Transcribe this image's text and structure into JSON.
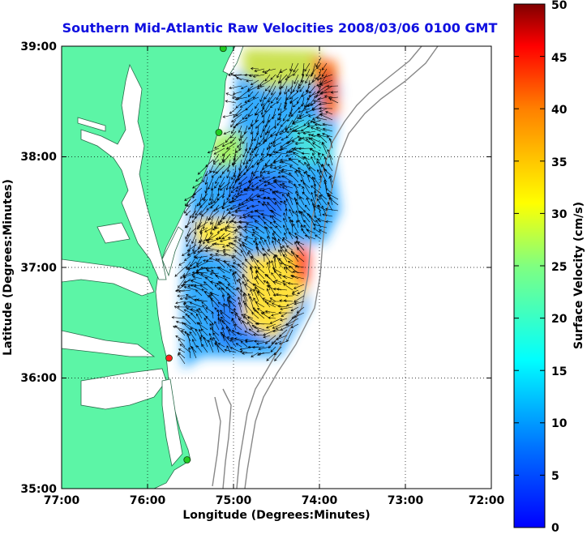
{
  "title": "Southern Mid-Atlantic Raw Velocities 2008/03/06 0100 GMT",
  "x_axis": {
    "label": "Longitude (Degrees:Minutes)",
    "ticks": [
      "77:00",
      "76:00",
      "75:00",
      "74:00",
      "73:00",
      "72:00"
    ]
  },
  "y_axis": {
    "label": "Latitude (Degrees:Minutes)",
    "ticks": [
      "39:00",
      "38:00",
      "37:00",
      "36:00",
      "35:00"
    ]
  },
  "colorbar": {
    "label": "Surface Velocity (cm/s)",
    "ticks": [
      "50",
      "45",
      "40",
      "35",
      "30",
      "25",
      "20",
      "15",
      "10",
      "5",
      "0"
    ],
    "range": [
      0,
      50
    ],
    "colormap": "jet"
  },
  "map": {
    "lon_range": [
      -77,
      -72
    ],
    "lat_range": [
      35,
      39
    ],
    "land_color": "#5cf5a6",
    "grid": "dotted",
    "stations": [
      {
        "lon": -75.12,
        "lat": 38.98,
        "color": "#22cc22"
      },
      {
        "lon": -75.17,
        "lat": 38.22,
        "color": "#22cc22"
      },
      {
        "lon": -75.75,
        "lat": 36.18,
        "color": "#ff2020"
      },
      {
        "lon": -75.54,
        "lat": 35.26,
        "color": "#22cc22"
      }
    ]
  }
}
